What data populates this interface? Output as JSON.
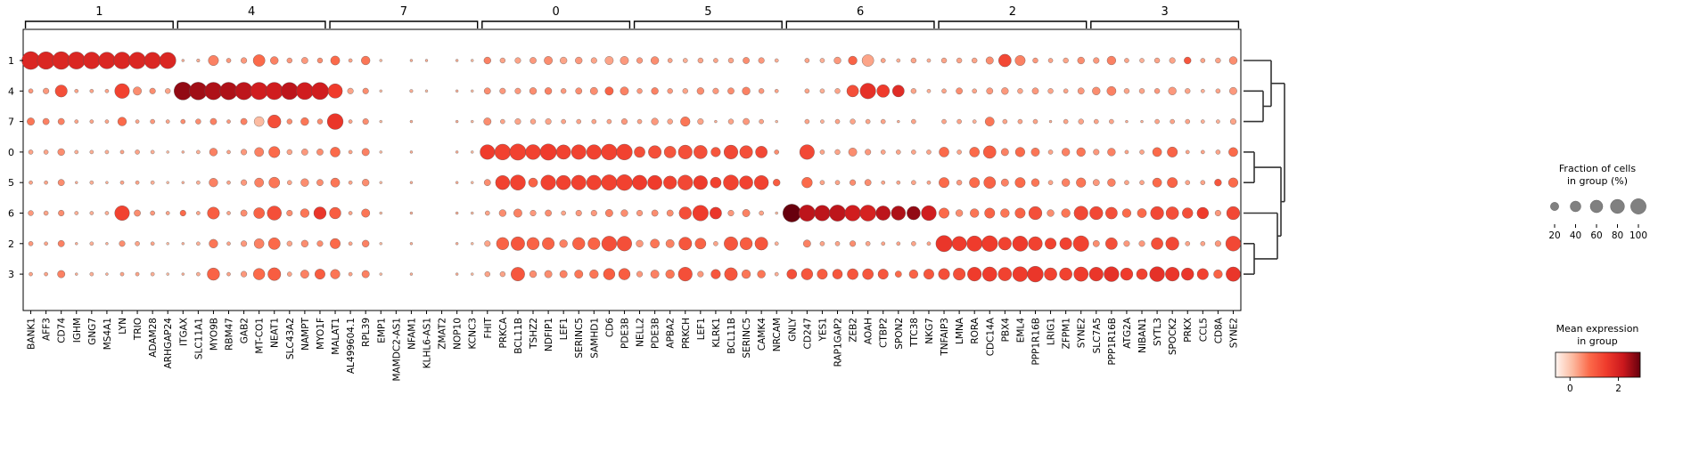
{
  "chart_data": {
    "type": "dotplot",
    "group_order": [
      "1",
      "4",
      "7",
      "0",
      "5",
      "6",
      "2",
      "3"
    ],
    "gene_groups": [
      {
        "label": "1",
        "genes": [
          "BANK1",
          "AFF3",
          "CD74",
          "IGHM",
          "GNG7",
          "MS4A1",
          "LYN",
          "TRIO",
          "ADAM28",
          "ARHGAP24"
        ]
      },
      {
        "label": "4",
        "genes": [
          "ITGAX",
          "SLC11A1",
          "MYO9B",
          "RBM47",
          "GAB2",
          "MT-CO1",
          "NEAT1",
          "SLC43A2",
          "NAMPT",
          "MYO1F"
        ]
      },
      {
        "label": "7",
        "genes": [
          "MALAT1",
          "AL499604.1",
          "RPL39",
          "EMP1",
          "MAMDC2-AS1",
          "NFAM1",
          "KLHL6-AS1",
          "ZMAT2",
          "NOP10",
          "KCNC3"
        ]
      },
      {
        "label": "0",
        "genes": [
          "FHIT",
          "PRKCA",
          "BCL11B",
          "TSHZ2",
          "NDFIP1",
          "LEF1",
          "SERINC5",
          "SAMHD1",
          "CD6",
          "PDE3B"
        ]
      },
      {
        "label": "5",
        "genes": [
          "NELL2",
          "PDE3B",
          "APBA2",
          "PRKCH",
          "LEF1",
          "KLRK1",
          "BCL11B",
          "SERINC5",
          "CAMK4",
          "NRCAM"
        ]
      },
      {
        "label": "6",
        "genes": [
          "GNLY",
          "CD247",
          "YES1",
          "RAP1GAP2",
          "ZEB2",
          "AOAH",
          "CTBP2",
          "SPON2",
          "TTC38",
          "NKG7"
        ]
      },
      {
        "label": "2",
        "genes": [
          "TNFAIP3",
          "LMNA",
          "RORA",
          "CDC14A",
          "PBX4",
          "EML4",
          "PPP1R16B",
          "LRIG1",
          "ZFPM1",
          "SYNE2"
        ]
      },
      {
        "label": "3",
        "genes": [
          "SLC7A5",
          "PPP1R16B",
          "ATG2A",
          "NIBAN1",
          "SYTL3",
          "SPOCK2",
          "PRKX",
          "CCL5",
          "CD8A",
          "SYNE2"
        ]
      }
    ],
    "fraction": [
      [
        92,
        88,
        90,
        85,
        82,
        80,
        82,
        80,
        78,
        76,
        2,
        3,
        30,
        6,
        10,
        40,
        18,
        8,
        12,
        8,
        24,
        4,
        22,
        2,
        0,
        2,
        2,
        0,
        2,
        2,
        14,
        8,
        10,
        12,
        20,
        14,
        14,
        10,
        20,
        20,
        10,
        18,
        6,
        6,
        8,
        6,
        8,
        12,
        10,
        4,
        0,
        6,
        6,
        14,
        22,
        40,
        6,
        4,
        8,
        4,
        8,
        8,
        8,
        16,
        46,
        30,
        8,
        6,
        8,
        14,
        10,
        22,
        6,
        6,
        8,
        10,
        14,
        6,
        8,
        18
      ],
      [
        6,
        10,
        42,
        4,
        4,
        4,
        62,
        20,
        10,
        8,
        92,
        90,
        88,
        88,
        88,
        86,
        86,
        84,
        84,
        84,
        60,
        10,
        10,
        2,
        0,
        3,
        2,
        0,
        2,
        2,
        12,
        10,
        10,
        14,
        14,
        8,
        12,
        16,
        20,
        20,
        8,
        14,
        8,
        8,
        14,
        10,
        12,
        18,
        8,
        4,
        0,
        6,
        6,
        8,
        40,
        70,
        46,
        40,
        8,
        4,
        6,
        12,
        6,
        12,
        14,
        8,
        12,
        8,
        6,
        12,
        18,
        24,
        8,
        8,
        8,
        18,
        8,
        4,
        6,
        16
      ],
      [
        16,
        12,
        12,
        4,
        4,
        4,
        22,
        4,
        6,
        4,
        6,
        8,
        12,
        4,
        12,
        28,
        50,
        8,
        18,
        8,
        72,
        4,
        10,
        2,
        0,
        2,
        0,
        0,
        2,
        2,
        16,
        6,
        10,
        8,
        10,
        6,
        6,
        6,
        6,
        10,
        6,
        14,
        8,
        26,
        10,
        2,
        8,
        12,
        6,
        2,
        0,
        6,
        4,
        6,
        8,
        6,
        6,
        2,
        6,
        0,
        6,
        6,
        4,
        24,
        6,
        6,
        6,
        2,
        6,
        8,
        6,
        6,
        2,
        2,
        6,
        6,
        6,
        4,
        4,
        10
      ],
      [
        6,
        6,
        14,
        4,
        4,
        4,
        4,
        6,
        4,
        2,
        2,
        4,
        18,
        4,
        10,
        24,
        36,
        8,
        12,
        12,
        28,
        4,
        16,
        2,
        0,
        2,
        0,
        0,
        2,
        2,
        62,
        72,
        76,
        64,
        76,
        60,
        62,
        62,
        72,
        72,
        34,
        48,
        40,
        56,
        52,
        26,
        56,
        48,
        40,
        6,
        0,
        62,
        6,
        8,
        20,
        10,
        6,
        6,
        6,
        6,
        28,
        6,
        28,
        46,
        16,
        26,
        20,
        6,
        18,
        22,
        10,
        18,
        4,
        6,
        24,
        30,
        4,
        4,
        6,
        24
      ],
      [
        4,
        4,
        12,
        2,
        4,
        2,
        4,
        4,
        4,
        2,
        2,
        4,
        22,
        4,
        10,
        24,
        34,
        6,
        18,
        12,
        24,
        4,
        14,
        2,
        0,
        2,
        0,
        0,
        2,
        2,
        12,
        58,
        66,
        24,
        64,
        60,
        62,
        62,
        70,
        72,
        62,
        60,
        50,
        64,
        56,
        34,
        66,
        52,
        58,
        14,
        0,
        32,
        6,
        6,
        10,
        12,
        4,
        4,
        6,
        4,
        30,
        8,
        30,
        40,
        16,
        30,
        18,
        6,
        18,
        26,
        12,
        18,
        6,
        6,
        24,
        30,
        6,
        6,
        14,
        26
      ],
      [
        8,
        6,
        10,
        4,
        4,
        4,
        62,
        12,
        6,
        4,
        10,
        4,
        42,
        4,
        12,
        34,
        58,
        10,
        22,
        44,
        38,
        4,
        20,
        2,
        0,
        2,
        0,
        0,
        2,
        2,
        6,
        14,
        20,
        10,
        12,
        6,
        10,
        10,
        16,
        14,
        10,
        12,
        12,
        44,
        70,
        40,
        10,
        16,
        6,
        2,
        92,
        76,
        70,
        76,
        72,
        74,
        60,
        58,
        52,
        64,
        30,
        14,
        22,
        30,
        22,
        30,
        50,
        14,
        22,
        56,
        50,
        40,
        22,
        24,
        50,
        46,
        32,
        38,
        10,
        50
      ],
      [
        6,
        4,
        12,
        2,
        4,
        2,
        10,
        6,
        4,
        2,
        2,
        4,
        22,
        4,
        10,
        28,
        40,
        8,
        14,
        10,
        30,
        4,
        14,
        2,
        0,
        2,
        0,
        0,
        2,
        2,
        10,
        44,
        54,
        44,
        42,
        18,
        44,
        42,
        64,
        62,
        14,
        24,
        20,
        48,
        34,
        6,
        54,
        44,
        48,
        4,
        0,
        16,
        6,
        6,
        10,
        6,
        4,
        4,
        6,
        4,
        76,
        60,
        68,
        72,
        48,
        66,
        56,
        36,
        42,
        70,
        12,
        40,
        10,
        10,
        40,
        50,
        6,
        6,
        10,
        64
      ],
      [
        4,
        4,
        16,
        2,
        4,
        2,
        4,
        4,
        4,
        2,
        2,
        4,
        44,
        4,
        10,
        38,
        48,
        6,
        20,
        30,
        26,
        4,
        16,
        2,
        0,
        2,
        0,
        0,
        2,
        2,
        8,
        8,
        54,
        14,
        16,
        16,
        20,
        22,
        38,
        38,
        10,
        20,
        22,
        56,
        10,
        26,
        48,
        22,
        18,
        4,
        28,
        38,
        30,
        28,
        34,
        34,
        30,
        12,
        22,
        30,
        36,
        42,
        56,
        60,
        52,
        64,
        72,
        46,
        46,
        60,
        56,
        64,
        44,
        34,
        64,
        56,
        44,
        36,
        22,
        60
      ]
    ],
    "expression": [
      [
        1.9,
        1.9,
        1.9,
        1.9,
        1.9,
        1.9,
        1.9,
        1.9,
        1.9,
        1.9,
        0.2,
        0.2,
        0.6,
        0.4,
        0.4,
        0.8,
        0.6,
        0.4,
        0.4,
        0.5,
        0.8,
        0.3,
        0.7,
        0.1,
        0,
        0.2,
        0.2,
        0,
        0.2,
        0.1,
        0.6,
        0.3,
        0.3,
        0.4,
        0.5,
        0.3,
        0.4,
        0.3,
        0.3,
        0.4,
        0.4,
        0.5,
        0.3,
        0.2,
        0.3,
        0.3,
        0.3,
        0.5,
        0.4,
        0.2,
        0,
        0.3,
        0.2,
        0.4,
        0.9,
        0.3,
        0.3,
        0.2,
        0.3,
        0.2,
        0.3,
        0.3,
        0.3,
        0.5,
        1.3,
        0.6,
        0.4,
        0.3,
        0.3,
        0.5,
        0.4,
        0.6,
        0.3,
        0.2,
        0.3,
        0.3,
        1.1,
        0.3,
        0.3,
        0.5
      ],
      [
        0.4,
        0.4,
        1.2,
        0.3,
        0.3,
        0.3,
        1.4,
        0.5,
        0.5,
        0.3,
        2.6,
        2.5,
        2.4,
        2.4,
        2.3,
        2.1,
        2.1,
        2.3,
        2.1,
        2.1,
        1.5,
        0.3,
        0.5,
        0.1,
        0,
        0.2,
        0.1,
        0,
        0.2,
        0.1,
        0.5,
        0.4,
        0.4,
        0.5,
        0.6,
        0.4,
        0.5,
        0.5,
        0.9,
        0.6,
        0.4,
        0.6,
        0.4,
        0.3,
        0.5,
        0.4,
        0.5,
        0.6,
        0.4,
        0.3,
        0,
        0.3,
        0.2,
        0.3,
        1.2,
        1.7,
        1.5,
        1.8,
        0.3,
        0.2,
        0.3,
        0.5,
        0.3,
        0.4,
        0.4,
        0.3,
        0.4,
        0.3,
        0.3,
        0.4,
        0.5,
        0.6,
        0.3,
        0.3,
        0.4,
        0.4,
        0.3,
        0.2,
        0.3,
        0.4
      ],
      [
        0.7,
        0.6,
        0.6,
        0.3,
        0.3,
        0.3,
        0.8,
        0.3,
        0.4,
        0.3,
        0.5,
        0.5,
        0.6,
        0.4,
        0.6,
        0.1,
        1.2,
        0.5,
        0.7,
        0.5,
        1.6,
        0.3,
        0.5,
        0.1,
        0,
        0.2,
        0,
        0,
        0.2,
        0.1,
        0.5,
        0.3,
        0.3,
        0.3,
        0.3,
        0.3,
        0.3,
        0.3,
        0.3,
        0.4,
        0.3,
        0.4,
        0.3,
        0.7,
        0.3,
        0.2,
        0.3,
        0.4,
        0.3,
        0.1,
        0,
        0.3,
        0.2,
        0.3,
        0.3,
        0.3,
        0.3,
        0.2,
        0.3,
        0,
        0.3,
        0.3,
        0.2,
        0.7,
        0.3,
        0.3,
        0.3,
        0.2,
        0.3,
        0.3,
        0.3,
        0.3,
        0.2,
        0.2,
        0.3,
        0.3,
        0.3,
        0.2,
        0.2,
        0.3
      ],
      [
        0.3,
        0.3,
        0.5,
        0.2,
        0.2,
        0.2,
        0.3,
        0.3,
        0.2,
        0.1,
        0.2,
        0.2,
        0.6,
        0.3,
        0.4,
        0.6,
        0.8,
        0.3,
        0.4,
        0.5,
        0.8,
        0.3,
        0.6,
        0.1,
        0,
        0.2,
        0,
        0,
        0.2,
        0.1,
        1.5,
        1.4,
        1.4,
        1.4,
        1.5,
        1.4,
        1.4,
        1.4,
        1.4,
        1.4,
        1.2,
        1.2,
        1.1,
        1.2,
        1.2,
        1.1,
        1.3,
        1.2,
        1.3,
        0.5,
        0,
        1.3,
        0.3,
        0.3,
        0.5,
        0.4,
        0.3,
        0.3,
        0.3,
        0.3,
        0.8,
        0.3,
        0.8,
        1.0,
        0.6,
        0.8,
        0.7,
        0.3,
        0.6,
        0.7,
        0.4,
        0.6,
        0.3,
        0.3,
        0.8,
        0.9,
        0.3,
        0.3,
        0.3,
        0.8
      ],
      [
        0.3,
        0.3,
        0.5,
        0.2,
        0.2,
        0.2,
        0.3,
        0.3,
        0.2,
        0.1,
        0.2,
        0.2,
        0.6,
        0.3,
        0.4,
        0.6,
        0.7,
        0.3,
        0.5,
        0.5,
        0.7,
        0.3,
        0.5,
        0.1,
        0,
        0.2,
        0,
        0,
        0.2,
        0.1,
        0.5,
        1.4,
        1.4,
        0.9,
        1.4,
        1.4,
        1.4,
        1.4,
        1.4,
        1.4,
        1.5,
        1.5,
        1.4,
        1.3,
        1.5,
        1.4,
        1.4,
        1.4,
        1.4,
        1.0,
        0,
        0.8,
        0.3,
        0.3,
        0.5,
        0.5,
        0.3,
        0.3,
        0.3,
        0.3,
        0.8,
        0.4,
        0.8,
        0.9,
        0.6,
        0.8,
        0.7,
        0.3,
        0.6,
        0.7,
        0.4,
        0.6,
        0.3,
        0.3,
        0.8,
        0.9,
        0.3,
        0.3,
        1.1,
        0.8
      ],
      [
        0.4,
        0.3,
        0.5,
        0.2,
        0.2,
        0.2,
        1.4,
        0.5,
        0.4,
        0.3,
        0.8,
        0.3,
        1.0,
        0.3,
        0.5,
        0.9,
        1.2,
        0.5,
        0.7,
        1.6,
        1.0,
        0.3,
        0.7,
        0.1,
        0,
        0.2,
        0,
        0,
        0.2,
        0.1,
        0.3,
        0.5,
        0.6,
        0.4,
        0.5,
        0.3,
        0.4,
        0.4,
        0.6,
        0.5,
        0.4,
        0.5,
        0.5,
        1.2,
        1.5,
        1.6,
        0.4,
        0.6,
        0.3,
        0.1,
        2.9,
        2.3,
        2.3,
        2.3,
        2.1,
        2.0,
        2.3,
        2.4,
        2.6,
        2.1,
        0.8,
        0.5,
        0.7,
        0.9,
        0.7,
        0.9,
        1.2,
        0.5,
        0.7,
        1.3,
        1.3,
        1.2,
        0.8,
        0.8,
        1.3,
        1.2,
        1.2,
        1.5,
        0.4,
        1.3
      ],
      [
        0.4,
        0.3,
        0.6,
        0.2,
        0.2,
        0.2,
        0.5,
        0.3,
        0.3,
        0.1,
        0.2,
        0.2,
        0.7,
        0.3,
        0.4,
        0.6,
        0.8,
        0.3,
        0.5,
        0.5,
        0.8,
        0.3,
        0.6,
        0.1,
        0,
        0.2,
        0,
        0,
        0.2,
        0.1,
        0.3,
        0.9,
        1.1,
        0.9,
        0.9,
        0.6,
        0.9,
        0.9,
        1.2,
        1.2,
        0.4,
        0.7,
        0.6,
        1.1,
        0.9,
        0.3,
        1.1,
        1.0,
        1.1,
        0.2,
        0,
        0.6,
        0.3,
        0.3,
        0.5,
        0.3,
        0.3,
        0.3,
        0.3,
        0.3,
        1.6,
        1.5,
        1.5,
        1.5,
        1.4,
        1.5,
        1.4,
        1.4,
        1.4,
        1.4,
        0.5,
        1.2,
        0.4,
        0.4,
        1.2,
        1.3,
        0.3,
        0.3,
        0.4,
        1.3
      ],
      [
        0.3,
        0.3,
        0.6,
        0.2,
        0.2,
        0.2,
        0.3,
        0.3,
        0.2,
        0.1,
        0.2,
        0.2,
        0.9,
        0.3,
        0.4,
        0.8,
        1.0,
        0.3,
        0.6,
        1.0,
        0.7,
        0.3,
        0.6,
        0.1,
        0,
        0.2,
        0,
        0,
        0.2,
        0.1,
        0.3,
        0.3,
        1.1,
        0.5,
        0.5,
        0.6,
        0.7,
        0.7,
        1.0,
        1.0,
        0.4,
        0.6,
        0.7,
        1.2,
        0.4,
        1.1,
        1.1,
        0.7,
        0.7,
        0.2,
        1.2,
        1.1,
        1.0,
        1.1,
        1.1,
        1.1,
        1.1,
        0.8,
        0.9,
        1.1,
        1.2,
        1.2,
        1.5,
        1.5,
        1.4,
        1.5,
        1.6,
        1.4,
        1.4,
        1.5,
        1.6,
        1.7,
        1.5,
        1.4,
        1.7,
        1.6,
        1.6,
        1.4,
        0.9,
        1.6
      ]
    ],
    "size_legend": {
      "title_line1": "Fraction of cells",
      "title_line2": "in group (%)",
      "ticks": [
        "20",
        "40",
        "60",
        "80",
        "100"
      ],
      "values": [
        20,
        40,
        60,
        80,
        100
      ]
    },
    "color_legend": {
      "title_line1": "Mean expression",
      "title_line2": "in group",
      "ticks": [
        "0",
        "2"
      ],
      "tick_values": [
        0,
        2
      ],
      "vmin": -0.6,
      "vmax": 2.9,
      "colormap": "Reds",
      "stops": [
        "#fff5f0",
        "#fcbba1",
        "#fb6a4a",
        "#ef3b2c",
        "#cb181d",
        "#67000d"
      ]
    },
    "dendrogram": {
      "leaf_order": [
        "1",
        "4",
        "7",
        "0",
        "5",
        "6",
        "2",
        "3"
      ]
    },
    "colors": {
      "dot_edge": "#555555",
      "axis": "#000000"
    }
  }
}
